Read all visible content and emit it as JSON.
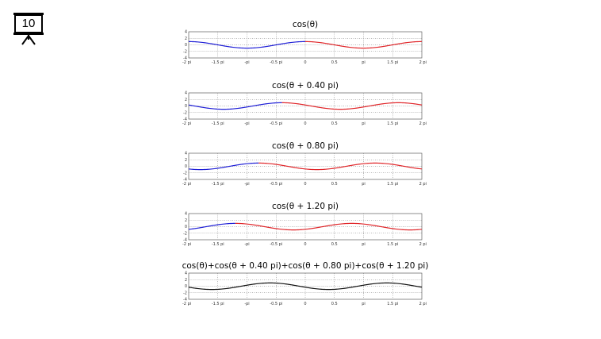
{
  "slide": {
    "number": "10"
  },
  "chart_data": [
    {
      "type": "line",
      "title": "cos(θ)",
      "phase_pi": 0,
      "xlim_pi": [
        -2,
        2
      ],
      "ylim": [
        -4,
        4
      ],
      "grid": true,
      "y_ticks": [
        "4",
        "2",
        "0",
        "-2",
        "-4"
      ],
      "x_ticks": [
        "-2 pi",
        "-1.5 pi",
        "-pi",
        "-0.5 pi",
        "0",
        "0.5",
        "pi",
        "1.5 pi",
        "2 pi"
      ],
      "color_split_pi": 0,
      "colors": [
        "#1f1fd6",
        "#e0262a"
      ],
      "amplitude": 1
    },
    {
      "type": "line",
      "title": "cos(θ + 0.40 pi)",
      "phase_pi": 0.4,
      "xlim_pi": [
        -2,
        2
      ],
      "ylim": [
        -4,
        4
      ],
      "grid": true,
      "y_ticks": [
        "4",
        "2",
        "0",
        "-2",
        "-4"
      ],
      "x_ticks": [
        "-2 pi",
        "-1.5 pi",
        "-pi",
        "-0.5 pi",
        "0",
        "0.5",
        "pi",
        "1.5 pi",
        "2 pi"
      ],
      "color_split_pi": -0.4,
      "colors": [
        "#1f1fd6",
        "#e0262a"
      ],
      "amplitude": 1
    },
    {
      "type": "line",
      "title": "cos(θ + 0.80 pi)",
      "phase_pi": 0.8,
      "xlim_pi": [
        -2,
        2
      ],
      "ylim": [
        -4,
        4
      ],
      "grid": true,
      "y_ticks": [
        "4",
        "2",
        "0",
        "-2",
        "-4"
      ],
      "x_ticks": [
        "-2 pi",
        "-1.5 pi",
        "-pi",
        "-0.5 pi",
        "0",
        "0.5",
        "pi",
        "1.5 pi",
        "2 pi"
      ],
      "color_split_pi": -0.8,
      "colors": [
        "#1f1fd6",
        "#e0262a"
      ],
      "amplitude": 1
    },
    {
      "type": "line",
      "title": "cos(θ + 1.20 pi)",
      "phase_pi": 1.2,
      "xlim_pi": [
        -2,
        2
      ],
      "ylim": [
        -4,
        4
      ],
      "grid": true,
      "y_ticks": [
        "4",
        "2",
        "0",
        "-2",
        "-4"
      ],
      "x_ticks": [
        "-2 pi",
        "-1.5 pi",
        "-pi",
        "-0.5 pi",
        "0",
        "0.5",
        "pi",
        "1.5 pi",
        "2 pi"
      ],
      "color_split_pi": -1.2,
      "colors": [
        "#1f1fd6",
        "#e0262a"
      ],
      "amplitude": 1
    },
    {
      "type": "line",
      "title": "cos(θ)+cos(θ + 0.40 pi)+cos(θ + 0.80 pi)+cos(θ + 1.20 pi)",
      "phase_pi": 0.6,
      "xlim_pi": [
        -2,
        2
      ],
      "ylim": [
        -4,
        4
      ],
      "grid": true,
      "y_ticks": [
        "4",
        "2",
        "0",
        "-2",
        "-4"
      ],
      "x_ticks": [
        "-2 pi",
        "-1.5 pi",
        "-pi",
        "-0.5 pi",
        "0",
        "0.5",
        "pi",
        "1.5 pi",
        "2 pi"
      ],
      "color_split_pi": null,
      "colors": [
        "#111111",
        "#111111"
      ],
      "amplitude": 1
    }
  ]
}
